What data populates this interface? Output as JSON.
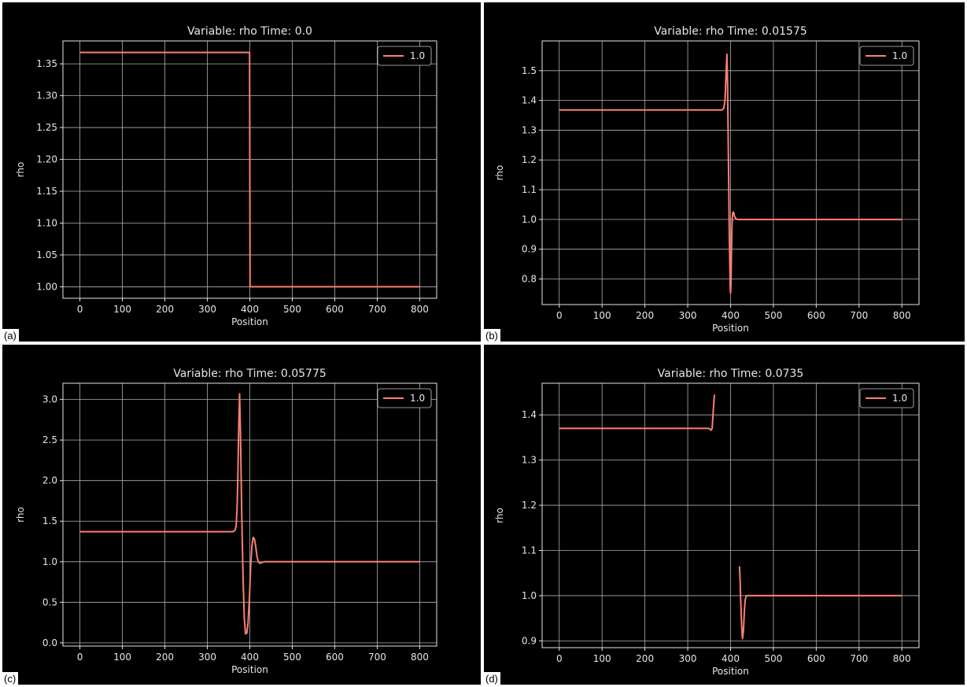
{
  "line_color": "#fa8072",
  "chart_data": [
    {
      "panel_label": "(a)",
      "type": "line",
      "title": "Variable: rho Time: 0.0",
      "xlabel": "Position",
      "ylabel": "rho",
      "xlim": [
        -40,
        840
      ],
      "ylim": [
        0.982,
        1.386
      ],
      "xticks": [
        0,
        100,
        200,
        300,
        400,
        500,
        600,
        700,
        800
      ],
      "yticks": [
        1.0,
        1.05,
        1.1,
        1.15,
        1.2,
        1.25,
        1.3,
        1.35
      ],
      "ytick_labels": [
        "1.00",
        "1.05",
        "1.10",
        "1.15",
        "1.20",
        "1.25",
        "1.30",
        "1.35"
      ],
      "grid": true,
      "legend_position": "top-right",
      "series": [
        {
          "name": "1.0",
          "x": [
            0,
            399.5,
            400.5,
            800
          ],
          "y": [
            1.368,
            1.368,
            1.0,
            1.0
          ]
        }
      ]
    },
    {
      "panel_label": "(b)",
      "type": "line",
      "title": "Variable: rho Time: 0.01575",
      "xlabel": "Position",
      "ylabel": "rho",
      "xlim": [
        -40,
        840
      ],
      "ylim": [
        0.714,
        1.6
      ],
      "xticks": [
        0,
        100,
        200,
        300,
        400,
        500,
        600,
        700,
        800
      ],
      "yticks": [
        0.8,
        0.9,
        1.0,
        1.1,
        1.2,
        1.3,
        1.4,
        1.5
      ],
      "ytick_labels": [
        "0.8",
        "0.9",
        "1.0",
        "1.1",
        "1.2",
        "1.3",
        "1.4",
        "1.5"
      ],
      "grid": true,
      "legend_position": "top-right",
      "series": [
        {
          "name": "1.0",
          "x": [
            0,
            380,
            384,
            387,
            388.5,
            390,
            391.5,
            393,
            395,
            397,
            399,
            400,
            401,
            402,
            403,
            404,
            405,
            406,
            407.5,
            409,
            412,
            416,
            422,
            430,
            800
          ],
          "y": [
            1.368,
            1.368,
            1.373,
            1.4,
            1.45,
            1.51,
            1.555,
            1.45,
            1.2,
            0.95,
            0.78,
            0.752,
            0.78,
            0.88,
            0.96,
            1.005,
            1.02,
            1.025,
            1.022,
            1.012,
            1.003,
            1.0,
            1.0,
            1.0,
            1.0
          ]
        }
      ]
    },
    {
      "panel_label": "(c)",
      "type": "line",
      "title": "Variable: rho Time: 0.05775",
      "xlabel": "Position",
      "ylabel": "rho",
      "xlim": [
        -40,
        840
      ],
      "ylim": [
        -0.04,
        3.2
      ],
      "xticks": [
        0,
        100,
        200,
        300,
        400,
        500,
        600,
        700,
        800
      ],
      "yticks": [
        0.0,
        0.5,
        1.0,
        1.5,
        2.0,
        2.5,
        3.0
      ],
      "ytick_labels": [
        "0.0",
        "0.5",
        "1.0",
        "1.5",
        "2.0",
        "2.5",
        "3.0"
      ],
      "grid": true,
      "legend_position": "top-right",
      "series": [
        {
          "name": "1.0",
          "x": [
            0,
            360,
            364,
            366,
            368,
            370,
            372,
            374,
            376,
            378,
            381,
            384,
            387,
            390,
            393,
            396,
            399,
            402,
            405,
            408,
            411,
            414,
            417,
            420,
            424,
            428,
            435,
            800
          ],
          "y": [
            1.37,
            1.37,
            1.38,
            1.4,
            1.45,
            1.65,
            2.1,
            2.7,
            3.07,
            2.6,
            1.6,
            0.8,
            0.3,
            0.11,
            0.12,
            0.25,
            0.55,
            0.95,
            1.2,
            1.3,
            1.28,
            1.18,
            1.06,
            1.0,
            0.98,
            0.99,
            1.0,
            1.0
          ]
        }
      ]
    },
    {
      "panel_label": "(d)",
      "type": "line",
      "title": "Variable: rho Time: 0.0735",
      "xlabel": "Position",
      "ylabel": "rho",
      "xlim": [
        -40,
        840
      ],
      "ylim": [
        0.885,
        1.47
      ],
      "xticks": [
        0,
        100,
        200,
        300,
        400,
        500,
        600,
        700,
        800
      ],
      "yticks": [
        0.9,
        1.0,
        1.1,
        1.2,
        1.3,
        1.4
      ],
      "ytick_labels": [
        "0.9",
        "1.0",
        "1.1",
        "1.2",
        "1.3",
        "1.4"
      ],
      "grid": true,
      "legend_position": "top-right",
      "series": [
        {
          "name": "1.0",
          "x": [
            0,
            350,
            354,
            357,
            359,
            361,
            362.5
          ],
          "y": [
            1.37,
            1.37,
            1.366,
            1.37,
            1.4,
            1.43,
            1.445
          ]
        },
        {
          "name": "1.0",
          "x": [
            421,
            422,
            424,
            426,
            428,
            430,
            432,
            434,
            437,
            440,
            445,
            800
          ],
          "y": [
            1.065,
            1.04,
            0.98,
            0.93,
            0.905,
            0.92,
            0.96,
            0.99,
            1.0,
            1.0,
            1.0,
            1.0
          ]
        }
      ]
    }
  ]
}
